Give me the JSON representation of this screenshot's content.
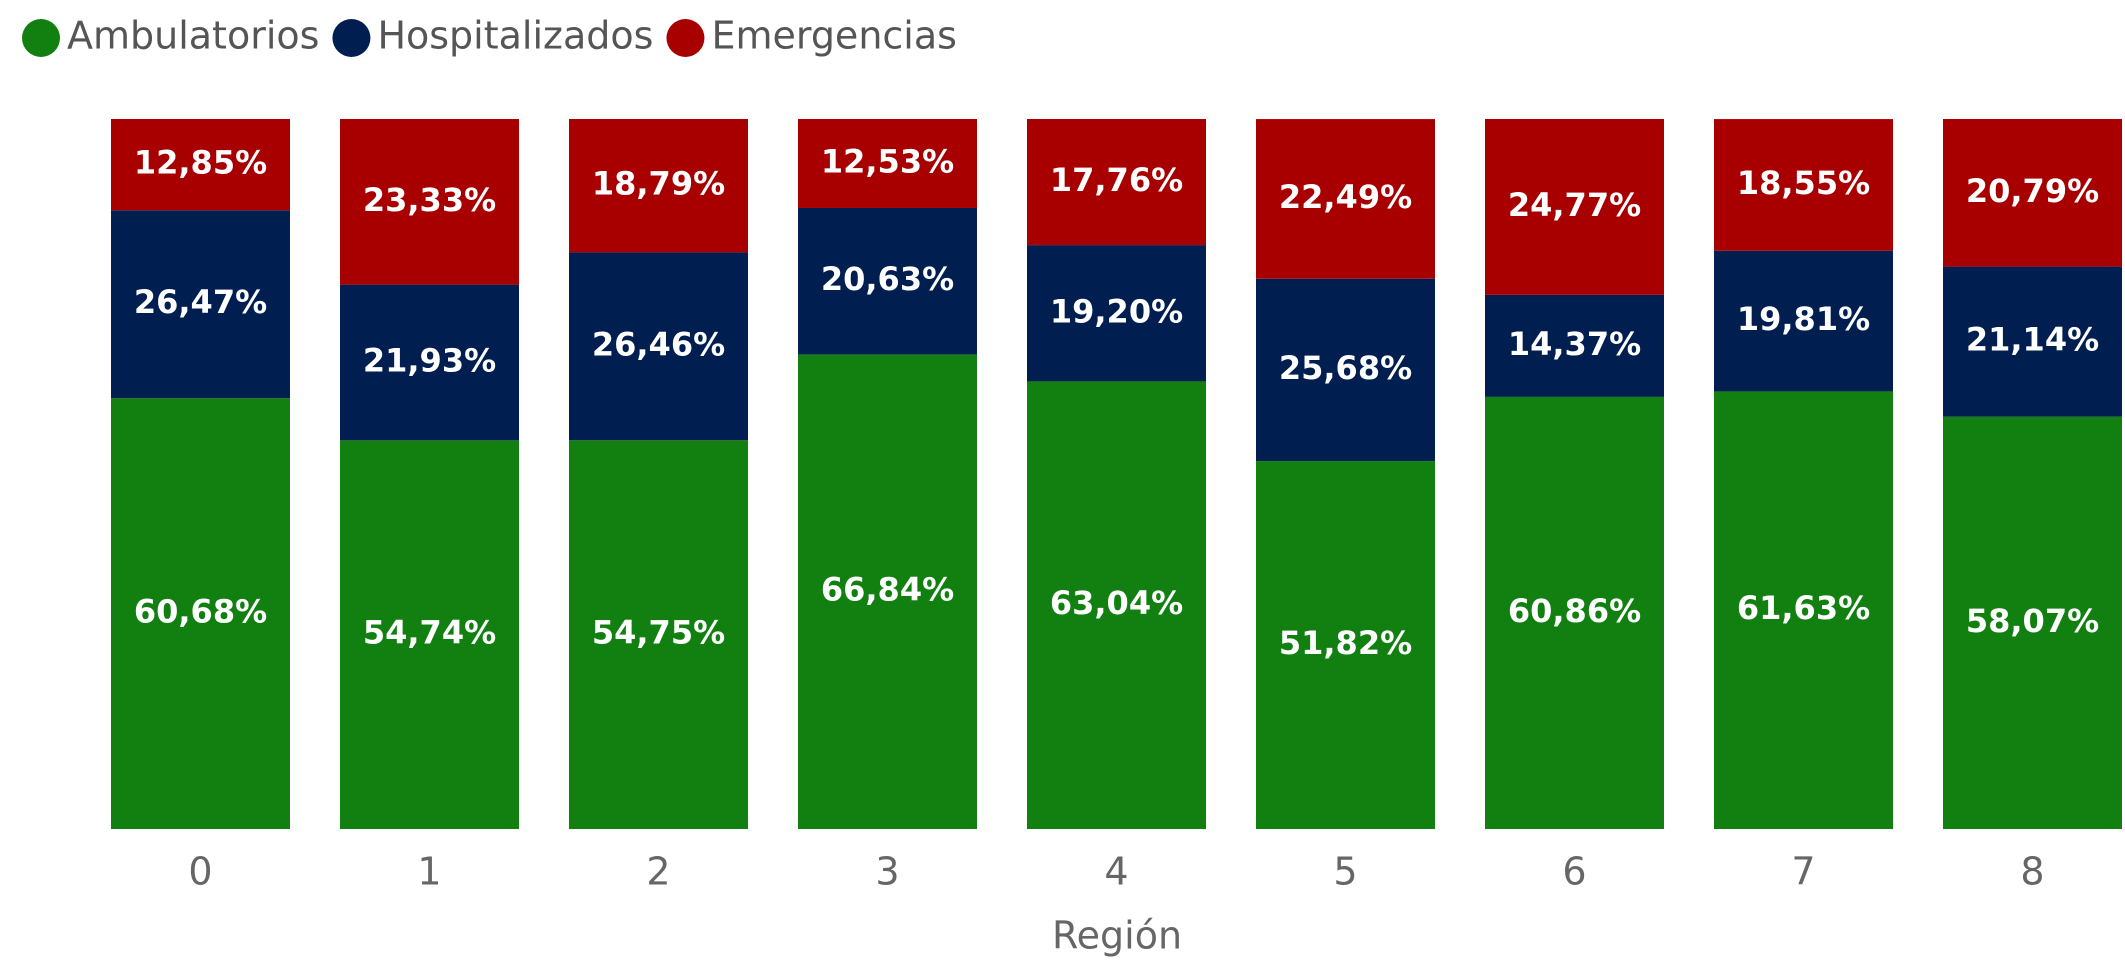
{
  "chart_data": {
    "type": "stacked_bar",
    "x_label": "Región",
    "categories": [
      "0",
      "1",
      "2",
      "3",
      "4",
      "5",
      "6",
      "7",
      "8"
    ],
    "ylim": [
      0,
      100
    ],
    "legend": "top-left",
    "series": [
      {
        "name": "Ambulatorios",
        "color": "#118011",
        "values": [
          60.68,
          54.74,
          54.75,
          66.84,
          63.04,
          51.82,
          60.86,
          61.63,
          58.07
        ],
        "value_labels": [
          "60,68%",
          "54,74%",
          "54,75%",
          "66,84%",
          "63,04%",
          "51,82%",
          "60,86%",
          "61,63%",
          "58,07%"
        ]
      },
      {
        "name": "Hospitalizados",
        "color": "#001e50",
        "values": [
          26.47,
          21.93,
          26.46,
          20.63,
          19.2,
          25.68,
          14.37,
          19.81,
          21.14
        ],
        "value_labels": [
          "26,47%",
          "21,93%",
          "26,46%",
          "20,63%",
          "19,20%",
          "25,68%",
          "14,37%",
          "19,81%",
          "21,14%"
        ]
      },
      {
        "name": "Emergencias",
        "color": "#a80000",
        "values": [
          12.85,
          23.33,
          18.79,
          12.53,
          17.76,
          22.49,
          24.77,
          18.55,
          20.79
        ],
        "value_labels": [
          "12,85%",
          "23,33%",
          "18,79%",
          "12,53%",
          "17,76%",
          "22,49%",
          "24,77%",
          "18,55%",
          "20,79%"
        ]
      }
    ]
  }
}
